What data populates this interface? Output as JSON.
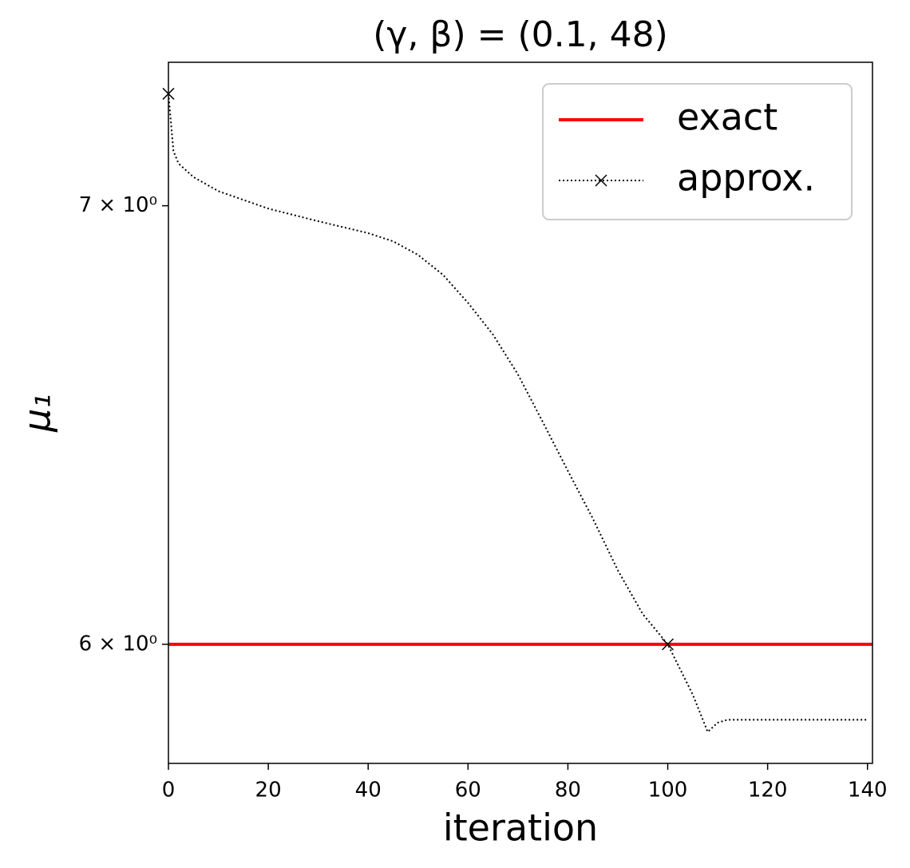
{
  "chart_data": {
    "type": "line",
    "title": "(γ, β) = (0.1, 48)",
    "x_label": "iteration",
    "y_label": "μ₁",
    "y_scale": "log",
    "xlim": [
      0,
      141
    ],
    "ylim": [
      5.754,
      7.362
    ],
    "xticks": [
      0,
      20,
      40,
      60,
      80,
      100,
      120,
      140
    ],
    "yticks": [
      {
        "value": 6,
        "label": "6 × 10⁰"
      },
      {
        "value": 7,
        "label": "7 × 10⁰"
      }
    ],
    "legend": "upper right",
    "marker_every": 100,
    "series": [
      {
        "name": "exact",
        "color": "#ff0000",
        "style": "solid",
        "x": [
          0,
          141
        ],
        "values": [
          6,
          6
        ]
      },
      {
        "name": "approx.",
        "color": "#000000",
        "style": "dotted",
        "marker": "x",
        "x": [
          0,
          1,
          2,
          5,
          10,
          20,
          30,
          40,
          45,
          50,
          55,
          60,
          65,
          70,
          75,
          80,
          85,
          90,
          95,
          100,
          105,
          108,
          110,
          112,
          140
        ],
        "values": [
          7.281,
          7.136,
          7.105,
          7.071,
          7.036,
          6.993,
          6.962,
          6.933,
          6.913,
          6.88,
          6.832,
          6.765,
          6.69,
          6.597,
          6.487,
          6.377,
          6.271,
          6.158,
          6.064,
          6.0,
          5.895,
          5.818,
          5.837,
          5.843,
          5.843
        ]
      }
    ]
  }
}
